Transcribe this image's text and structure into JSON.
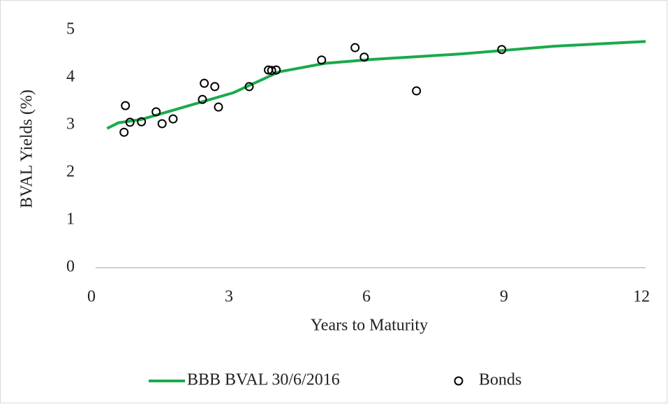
{
  "chart_data": {
    "type": "line",
    "x_label": "Years to Maturity",
    "y_label": "BVAL Yields (%)",
    "xlim": [
      0,
      12
    ],
    "ylim": [
      0,
      5
    ],
    "xticks": [
      0,
      3,
      6,
      9,
      12
    ],
    "yticks": [
      0,
      1,
      2,
      3,
      4,
      5
    ],
    "grid": false,
    "legend": "bottom",
    "series": [
      {
        "name": "BBB BVAL 30/6/2016",
        "type": "line",
        "color": "#1aaa4b",
        "x": [
          0.25,
          0.5,
          1,
          2,
          3,
          4,
          5,
          6,
          7,
          8,
          9,
          10,
          12
        ],
        "values": [
          2.93,
          3.05,
          3.12,
          3.4,
          3.68,
          4.12,
          4.3,
          4.38,
          4.44,
          4.5,
          4.58,
          4.66,
          4.76
        ]
      },
      {
        "name": "Bonds",
        "type": "scatter",
        "color": "#000000",
        "x": [
          0.62,
          0.65,
          0.75,
          1.0,
          1.32,
          1.45,
          1.69,
          2.33,
          2.37,
          2.6,
          2.68,
          3.35,
          3.77,
          3.84,
          3.94,
          4.93,
          5.66,
          5.86,
          7.0,
          8.86
        ],
        "values": [
          2.85,
          3.41,
          3.06,
          3.07,
          3.28,
          3.03,
          3.13,
          3.54,
          3.88,
          3.81,
          3.38,
          3.81,
          4.16,
          4.15,
          4.16,
          4.37,
          4.63,
          4.43,
          3.72,
          4.59
        ]
      }
    ]
  }
}
